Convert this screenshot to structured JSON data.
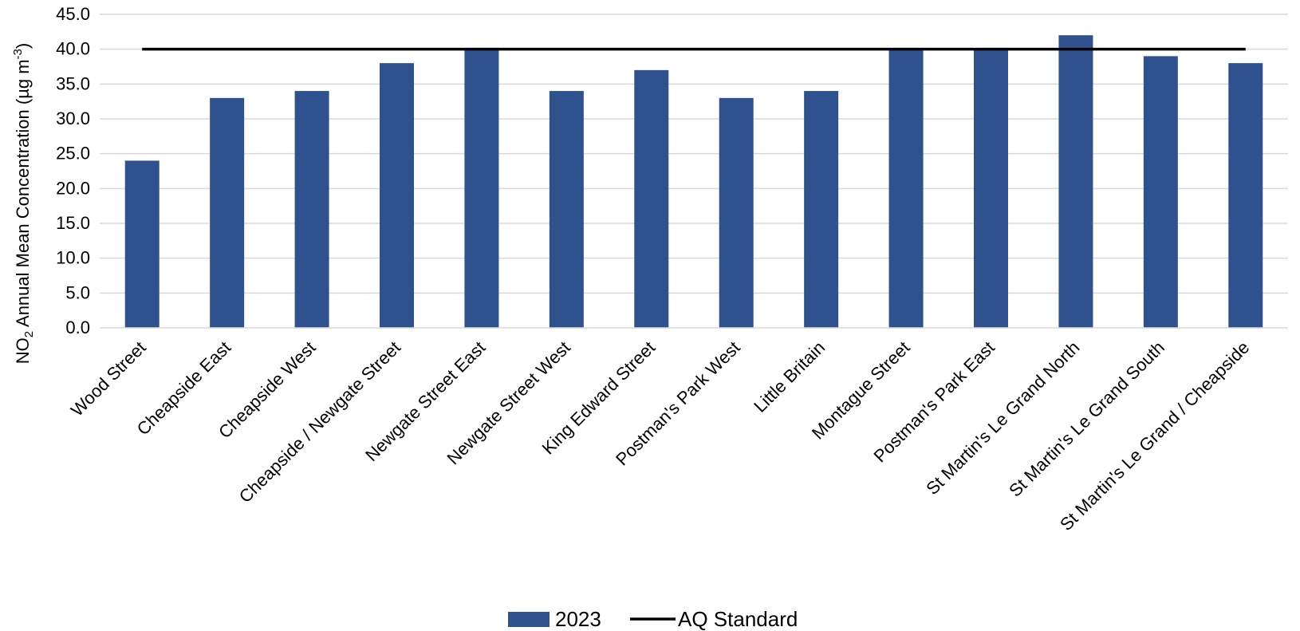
{
  "chart_data": {
    "type": "bar",
    "title": "",
    "xlabel": "",
    "ylabel_parts": {
      "base": "NO",
      "sub": "2",
      "middle": " Annual Mean Concentration (µg m",
      "sup": "-3",
      "end": ")"
    },
    "categories": [
      "Wood Street",
      "Cheapside East",
      "Cheapside West",
      "Cheapside / Newgate Street",
      "Newgate Street East",
      "Newgate Street West",
      "King Edward Street",
      "Postman's Park West",
      "Little Britain",
      "Montague Street",
      "Postman's Park East",
      "St Martin's Le Grand North",
      "St Martin's Le Grand South",
      "St Martin's Le Grand / Cheapside"
    ],
    "series": [
      {
        "name": "2023",
        "type": "bar",
        "color": "#2F528F",
        "values": [
          24,
          33,
          34,
          38,
          40,
          34,
          37,
          33,
          34,
          40,
          40,
          42,
          39,
          38
        ]
      },
      {
        "name": "AQ Standard",
        "type": "line",
        "color": "#000000",
        "values": [
          40,
          40,
          40,
          40,
          40,
          40,
          40,
          40,
          40,
          40,
          40,
          40,
          40,
          40
        ]
      }
    ],
    "ylim": [
      0,
      45
    ],
    "yticks": [
      "0.0",
      "5.0",
      "10.0",
      "15.0",
      "20.0",
      "25.0",
      "30.0",
      "35.0",
      "40.0",
      "45.0"
    ],
    "grid": true,
    "legend_position": "bottom"
  }
}
